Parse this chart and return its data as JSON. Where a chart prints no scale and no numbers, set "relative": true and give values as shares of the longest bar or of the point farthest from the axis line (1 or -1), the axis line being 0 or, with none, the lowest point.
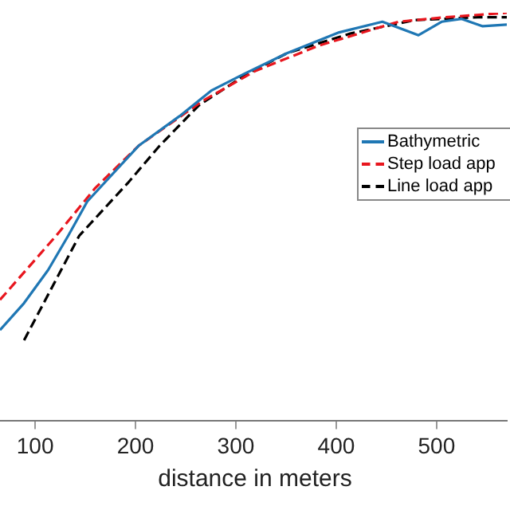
{
  "chart_data": {
    "type": "line",
    "relative": true,
    "xlabel": "distance in meters",
    "xlim": [
      65,
      570
    ],
    "xticks": [
      100,
      200,
      300,
      400,
      500
    ],
    "grid": false,
    "legend": "right",
    "marker": "none",
    "series": [
      {
        "name": "Bathymetric",
        "color": "#1f77b4",
        "line_style": "solid",
        "x": [
          65,
          89,
          113,
          133,
          152,
          203,
          244,
          276,
          308,
          351,
          403,
          446,
          482,
          505,
          525,
          546,
          570
        ],
        "values": [
          0.223,
          0.289,
          0.37,
          0.454,
          0.538,
          0.674,
          0.747,
          0.81,
          0.85,
          0.901,
          0.952,
          0.978,
          0.945,
          0.978,
          0.985,
          0.967,
          0.971
        ]
      },
      {
        "name": "Step load app",
        "color": "#e8161e",
        "line_style": "dashed",
        "x": [
          65,
          121,
          160,
          203,
          267,
          319,
          382,
          462,
          509,
          570
        ],
        "values": [
          0.297,
          0.454,
          0.571,
          0.674,
          0.784,
          0.857,
          0.919,
          0.978,
          0.989,
          1
        ]
      },
      {
        "name": "Line load app",
        "color": "#000000",
        "line_style": "dashed",
        "x": [
          89,
          144,
          192,
          224,
          263,
          311,
          351,
          414,
          478,
          541,
          570
        ],
        "values": [
          0.198,
          0.454,
          0.582,
          0.674,
          0.773,
          0.85,
          0.901,
          0.949,
          0.982,
          0.989,
          0.989
        ]
      }
    ]
  }
}
